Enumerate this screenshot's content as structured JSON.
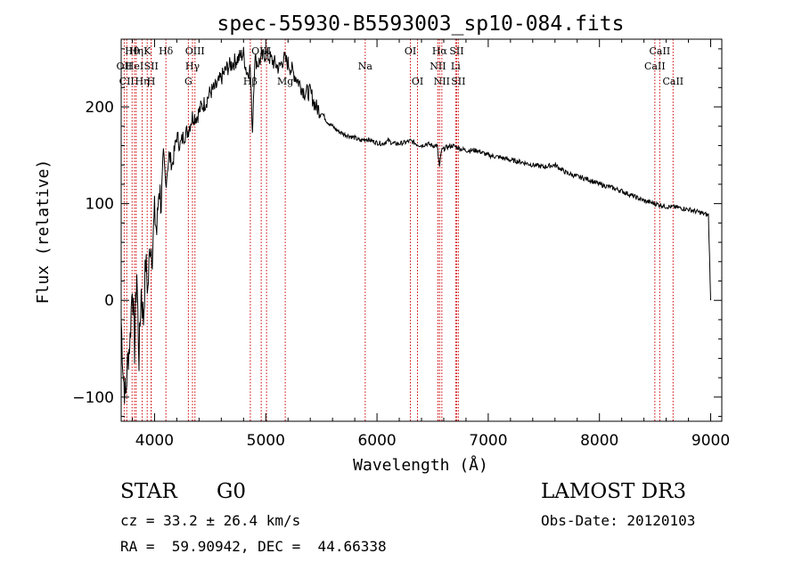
{
  "chart_data": {
    "type": "line",
    "title": "spec-55930-B5593003_sp10-084.fits",
    "xlabel": "Wavelength (Å)",
    "ylabel": "Flux (relative)",
    "xlim": [
      3700,
      9100
    ],
    "ylim": [
      -125,
      270
    ],
    "xticks": [
      4000,
      5000,
      6000,
      7000,
      8000,
      9000
    ],
    "yticks": [
      -100,
      0,
      100,
      200
    ],
    "grid": false,
    "series": [
      {
        "name": "flux",
        "color": "#000000",
        "x": [
          3700,
          3720,
          3740,
          3760,
          3780,
          3800,
          3820,
          3840,
          3860,
          3880,
          3900,
          3920,
          3940,
          3960,
          3980,
          4000,
          4020,
          4040,
          4060,
          4080,
          4100,
          4130,
          4160,
          4200,
          4230,
          4260,
          4300,
          4340,
          4380,
          4420,
          4460,
          4500,
          4550,
          4600,
          4650,
          4700,
          4750,
          4800,
          4830,
          4860,
          4880,
          4900,
          4930,
          4960,
          5000,
          5040,
          5080,
          5120,
          5160,
          5200,
          5250,
          5300,
          5350,
          5400,
          5450,
          5500,
          5550,
          5600,
          5650,
          5700,
          5750,
          5800,
          5850,
          5900,
          5950,
          6000,
          6050,
          6100,
          6150,
          6200,
          6250,
          6300,
          6350,
          6400,
          6450,
          6500,
          6540,
          6562,
          6580,
          6620,
          6680,
          6720,
          6800,
          6900,
          7000,
          7100,
          7200,
          7300,
          7400,
          7500,
          7600,
          7700,
          7800,
          7900,
          8000,
          8100,
          8200,
          8300,
          8400,
          8500,
          8600,
          8700,
          8800,
          8900,
          8980,
          9000
        ],
        "y": [
          -20,
          -80,
          -100,
          -60,
          -40,
          20,
          -50,
          30,
          -60,
          10,
          -20,
          40,
          10,
          60,
          50,
          90,
          70,
          120,
          100,
          140,
          120,
          150,
          140,
          170,
          160,
          170,
          175,
          190,
          190,
          200,
          205,
          215,
          220,
          230,
          240,
          245,
          250,
          255,
          235,
          240,
          175,
          250,
          245,
          250,
          255,
          250,
          245,
          240,
          250,
          245,
          235,
          225,
          215,
          215,
          200,
          195,
          185,
          180,
          175,
          172,
          170,
          168,
          165,
          167,
          165,
          163,
          162,
          165,
          162,
          162,
          163,
          165,
          162,
          160,
          162,
          160,
          160,
          138,
          155,
          158,
          160,
          158,
          155,
          155,
          150,
          148,
          145,
          143,
          140,
          138,
          140,
          132,
          128,
          125,
          120,
          117,
          113,
          108,
          103,
          100,
          97,
          96,
          94,
          91,
          88,
          0
        ]
      }
    ],
    "lines": [
      {
        "wavelength": 3727,
        "labels": [
          {
            "row": 2,
            "text": "OII"
          }
        ]
      },
      {
        "wavelength": 3750,
        "labels": [
          {
            "row": 3,
            "text": "CII"
          }
        ]
      },
      {
        "wavelength": 3798,
        "labels": [
          {
            "row": 1,
            "text": "Hθ"
          }
        ]
      },
      {
        "wavelength": 3820,
        "labels": [
          {
            "row": 2,
            "text": "HeI"
          }
        ]
      },
      {
        "wavelength": 3835,
        "labels": [
          {
            "row": 1,
            "text": "Hη"
          }
        ]
      },
      {
        "wavelength": 3889,
        "labels": [
          {
            "row": 3,
            "text": "Hη"
          }
        ]
      },
      {
        "wavelength": 3934,
        "labels": [
          {
            "row": 1,
            "text": "K"
          }
        ]
      },
      {
        "wavelength": 3969,
        "labels": [
          {
            "row": 3,
            "text": "H"
          }
        ]
      },
      {
        "wavelength": 3970,
        "labels": [
          {
            "row": 2,
            "text": "SII"
          }
        ]
      },
      {
        "wavelength": 4102,
        "labels": [
          {
            "row": 1,
            "text": "Hδ"
          }
        ]
      },
      {
        "wavelength": 4304,
        "labels": [
          {
            "row": 3,
            "text": "G"
          }
        ]
      },
      {
        "wavelength": 4341,
        "labels": [
          {
            "row": 2,
            "text": "Hγ"
          }
        ]
      },
      {
        "wavelength": 4363,
        "labels": [
          {
            "row": 1,
            "text": "OIII"
          }
        ]
      },
      {
        "wavelength": 4861,
        "labels": [
          {
            "row": 3,
            "text": "Hβ"
          }
        ]
      },
      {
        "wavelength": 4959,
        "labels": [
          {
            "row": 1,
            "text": "OIII"
          }
        ]
      },
      {
        "wavelength": 5007,
        "labels": []
      },
      {
        "wavelength": 5175,
        "labels": [
          {
            "row": 3,
            "text": "Mg"
          }
        ]
      },
      {
        "wavelength": 5894,
        "labels": [
          {
            "row": 2,
            "text": "Na"
          }
        ]
      },
      {
        "wavelength": 6300,
        "labels": [
          {
            "row": 1,
            "text": "OI"
          }
        ]
      },
      {
        "wavelength": 6364,
        "labels": [
          {
            "row": 3,
            "text": "OI"
          }
        ]
      },
      {
        "wavelength": 6548,
        "labels": [
          {
            "row": 2,
            "text": "NII"
          }
        ]
      },
      {
        "wavelength": 6563,
        "labels": [
          {
            "row": 1,
            "text": "Hα"
          }
        ]
      },
      {
        "wavelength": 6583,
        "labels": [
          {
            "row": 3,
            "text": "NII"
          }
        ]
      },
      {
        "wavelength": 6707,
        "labels": [
          {
            "row": 2,
            "text": "Li"
          }
        ]
      },
      {
        "wavelength": 6716,
        "labels": [
          {
            "row": 1,
            "text": "SII"
          }
        ]
      },
      {
        "wavelength": 6731,
        "labels": [
          {
            "row": 3,
            "text": "SII"
          }
        ]
      },
      {
        "wavelength": 8498,
        "labels": [
          {
            "row": 2,
            "text": "CaII"
          }
        ]
      },
      {
        "wavelength": 8542,
        "labels": [
          {
            "row": 1,
            "text": "CaII"
          }
        ]
      },
      {
        "wavelength": 8662,
        "labels": [
          {
            "row": 3,
            "text": "CaII"
          }
        ]
      }
    ],
    "line_color": "#cc0000"
  },
  "info": {
    "object_class": "STAR",
    "subclass": "G0",
    "survey": "LAMOST DR3",
    "redshift": "cz = 33.2 ± 26.4 km/s",
    "obs_date": "Obs-Date: 20120103",
    "coords": "RA =  59.90942, DEC =  44.66338"
  }
}
